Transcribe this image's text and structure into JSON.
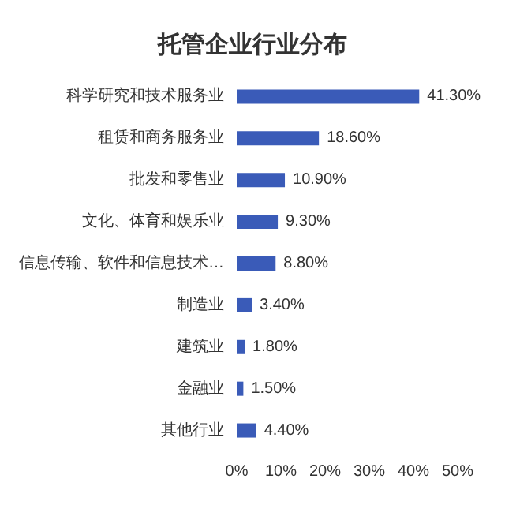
{
  "chart_data": {
    "type": "bar",
    "orientation": "horizontal",
    "title": "托管企业行业分布",
    "categories": [
      "科学研究和技术服务业",
      "租赁和商务服务业",
      "批发和零售业",
      "文化、体育和娱乐业",
      "信息传输、软件和信息技术…",
      "制造业",
      "建筑业",
      "金融业",
      "其他行业"
    ],
    "values": [
      41.3,
      18.6,
      10.9,
      9.3,
      8.8,
      3.4,
      1.8,
      1.5,
      4.4
    ],
    "value_labels": [
      "41.30%",
      "18.60%",
      "10.90%",
      "9.30%",
      "8.80%",
      "3.40%",
      "1.80%",
      "1.50%",
      "4.40%"
    ],
    "color": "#3a5bb8",
    "xlim": [
      0,
      50
    ],
    "xticks": [
      {
        "value": 0,
        "label": "0%"
      },
      {
        "value": 10,
        "label": "10%"
      },
      {
        "value": 20,
        "label": "20%"
      },
      {
        "value": 30,
        "label": "30%"
      },
      {
        "value": 40,
        "label": "40%"
      },
      {
        "value": 50,
        "label": "50%"
      }
    ],
    "grid": false
  }
}
